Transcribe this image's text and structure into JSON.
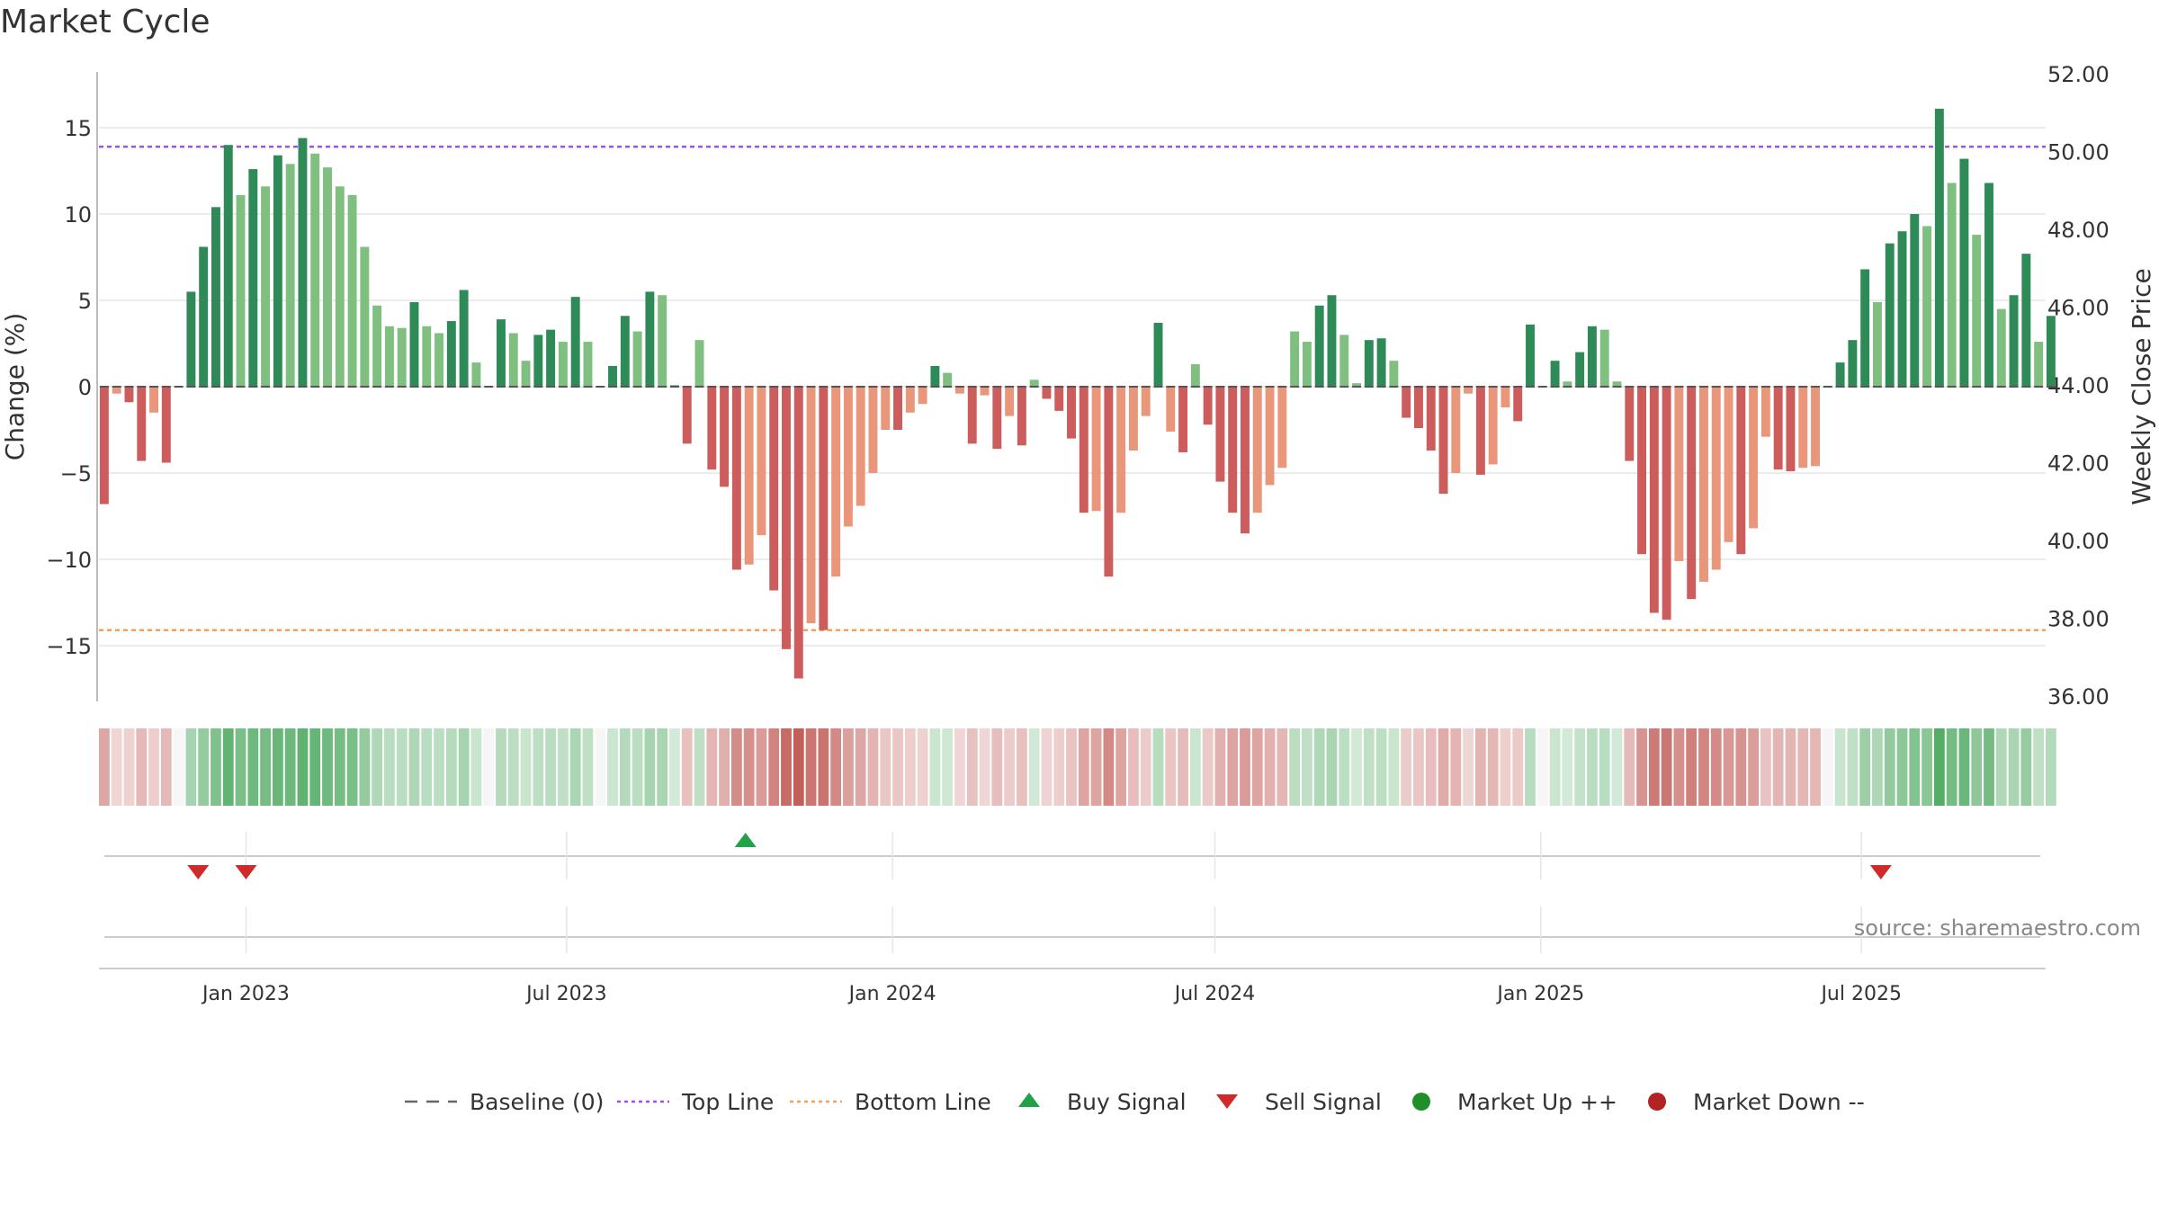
{
  "chart_data": {
    "type": "bar",
    "title": "Market Cycle",
    "ylabel_left": "Change (%)",
    "ylabel_right": "Weekly Close Price",
    "ylim_left": [
      -18,
      18
    ],
    "ylim_right": [
      36,
      52
    ],
    "left_ticks": [
      15,
      10,
      5,
      0,
      -5,
      -10,
      -15
    ],
    "left_tick_labels": [
      "15",
      "10",
      "5",
      "0",
      "−5",
      "−10",
      "−15"
    ],
    "right_ticks": [
      52,
      50,
      48,
      46,
      44,
      42,
      40,
      38,
      36
    ],
    "right_tick_labels": [
      "52.00",
      "50.00",
      "48.00",
      "46.00",
      "44.00",
      "42.00",
      "40.00",
      "38.00",
      "36.00"
    ],
    "x_start": "2022-10-10",
    "x_end": "2025-10-13",
    "week_start": "2022-10-13",
    "x_ticks": [
      {
        "label": "Jan 2023",
        "date": "2023-01-01"
      },
      {
        "label": "Jul 2023",
        "date": "2023-07-01"
      },
      {
        "label": "Jan 2024",
        "date": "2024-01-01"
      },
      {
        "label": "Jul 2024",
        "date": "2024-07-01"
      },
      {
        "label": "Jan 2025",
        "date": "2025-01-01"
      },
      {
        "label": "Jul 2025",
        "date": "2025-07-01"
      }
    ],
    "top_line": 13.9,
    "bottom_line": -14.1,
    "baseline": 0,
    "values": [
      -6.8,
      -0.4,
      -0.9,
      -4.3,
      -1.5,
      -4.4,
      0,
      5.5,
      8.1,
      10.4,
      14,
      11.1,
      12.6,
      11.6,
      13.4,
      12.9,
      14.4,
      13.5,
      12.7,
      11.6,
      11.1,
      8.1,
      4.7,
      3.5,
      3.4,
      4.9,
      3.5,
      3.1,
      3.8,
      5.6,
      1.4,
      0,
      3.9,
      3.1,
      1.5,
      3,
      3.3,
      2.6,
      5.2,
      2.6,
      0,
      1.2,
      4.1,
      3.2,
      5.5,
      5.3,
      0.1,
      -3.3,
      2.7,
      -4.8,
      -5.8,
      -10.6,
      -10.3,
      -8.6,
      -11.8,
      -15.2,
      -16.9,
      -13.7,
      -14.1,
      -11,
      -8.1,
      -6.9,
      -5,
      -2.5,
      -2.5,
      -1.5,
      -1,
      1.2,
      0.8,
      -0.4,
      -3.3,
      -0.5,
      -3.6,
      -1.7,
      -3.4,
      0.4,
      -0.7,
      -1.4,
      -3,
      -7.3,
      -7.2,
      -11,
      -7.3,
      -3.7,
      -1.7,
      3.7,
      -2.6,
      -3.8,
      1.3,
      -2.2,
      -5.5,
      -7.3,
      -8.5,
      -7.3,
      -5.7,
      -4.7,
      3.2,
      2.6,
      4.7,
      5.3,
      3,
      0.2,
      2.7,
      2.8,
      1.5,
      -1.8,
      -2.4,
      -3.7,
      -6.2,
      -5,
      -0.4,
      -5.1,
      -4.5,
      -1.2,
      -2,
      3.6,
      0,
      1.5,
      0.3,
      2,
      3.5,
      3.3,
      0.3,
      -4.3,
      -9.7,
      -13.1,
      -13.5,
      -10.1,
      -12.3,
      -11.3,
      -10.6,
      -9,
      -9.7,
      -8.2,
      -2.9,
      -4.8,
      -4.9,
      -4.7,
      -4.6,
      0,
      1.4,
      2.7,
      6.8,
      4.9,
      8.3,
      9,
      10,
      9.3,
      16.1,
      11.8,
      13.2,
      8.8,
      11.8,
      4.5,
      5.3,
      7.7,
      2.6,
      4.1
    ],
    "signals": [
      {
        "type": "sell",
        "date": "2022-12-05",
        "label": "Sell Signal"
      },
      {
        "type": "sell",
        "date": "2023-01-01",
        "label": "Sell Signal"
      },
      {
        "type": "buy",
        "date": "2023-10-10",
        "label": "Buy Signal"
      },
      {
        "type": "sell",
        "date": "2025-07-12",
        "label": "Sell Signal"
      }
    ],
    "colors": {
      "up_strong": "#2e8b57",
      "up_light": "#7fbf7f",
      "down_strong": "#cd5c5c",
      "down_light": "#e9967a",
      "top_line": "#9a55d6",
      "bottom_line": "#f0a060",
      "buy": "#22a04a",
      "sell": "#d02a2a",
      "market_up": "#1f8f2a",
      "market_down": "#b52222",
      "grid": "#e6e6e6",
      "axis": "#bbbbbb",
      "text": "#333333"
    },
    "legend": [
      {
        "label": "Baseline (0)",
        "kind": "baseline"
      },
      {
        "label": "Top Line",
        "kind": "top"
      },
      {
        "label": "Bottom Line",
        "kind": "bottom"
      },
      {
        "label": "Buy Signal",
        "kind": "buy"
      },
      {
        "label": "Sell Signal",
        "kind": "sell"
      },
      {
        "label": "Market Up ++",
        "kind": "up"
      },
      {
        "label": "Market Down --",
        "kind": "down"
      }
    ],
    "legend_placement": "bottom-center",
    "source": "source: sharemaestro.com"
  }
}
